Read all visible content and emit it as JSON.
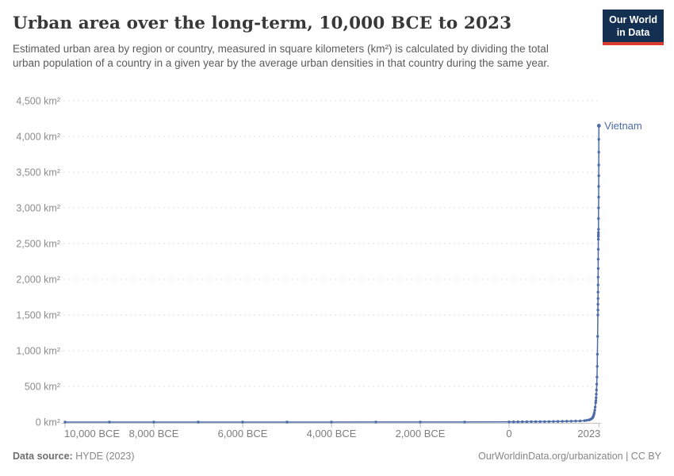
{
  "header": {
    "title": "Urban area over the long-term, 10,000 BCE to 2023",
    "subtitle": "Estimated urban area by region or country, measured in square kilometers (km²) is calculated by dividing the total urban population of a country in a given year by the average urban densities in that country during the same year.",
    "logo": {
      "line1": "Our World",
      "line2": "in Data",
      "bg_color": "#132F51",
      "accent_color": "#DC3A2F"
    }
  },
  "footer": {
    "source_label": "Data source:",
    "source_value": " HYDE (2023)",
    "credit": "OurWorldinData.org/urbanization | CC BY"
  },
  "chart_data": {
    "type": "line",
    "title": "Urban area over the long-term, 10,000 BCE to 2023",
    "xlabel": "",
    "ylabel": "km²",
    "ylim": [
      0,
      4500
    ],
    "xlim": [
      -10000,
      2060
    ],
    "grid": "dashed-horizontal",
    "legend_position": "end-of-line-label",
    "line_color": "#4C6BA8",
    "grid_color": "#e0e0e0",
    "axis_color": "#c2c2c2",
    "tick_label_color": "#8c8c8c",
    "yticks": [
      {
        "value": 0,
        "label": "0 km²"
      },
      {
        "value": 500,
        "label": "500 km²"
      },
      {
        "value": 1000,
        "label": "1,000 km²"
      },
      {
        "value": 1500,
        "label": "1,500 km²"
      },
      {
        "value": 2000,
        "label": "2,000 km²"
      },
      {
        "value": 2500,
        "label": "2,500 km²"
      },
      {
        "value": 3000,
        "label": "3,000 km²"
      },
      {
        "value": 3500,
        "label": "3,500 km²"
      },
      {
        "value": 4000,
        "label": "4,000 km²"
      },
      {
        "value": 4500,
        "label": "4,500 km²"
      }
    ],
    "xticks": [
      {
        "value": -10000,
        "label": "10,000 BCE"
      },
      {
        "value": -8000,
        "label": "8,000 BCE"
      },
      {
        "value": -6000,
        "label": "6,000 BCE"
      },
      {
        "value": -4000,
        "label": "4,000 BCE"
      },
      {
        "value": -2000,
        "label": "2,000 BCE"
      },
      {
        "value": 0,
        "label": "0"
      },
      {
        "value": 2023,
        "label": "2023"
      }
    ],
    "series": [
      {
        "name": "Vietnam",
        "color": "#4C6BA8",
        "points": [
          [
            -10000,
            0
          ],
          [
            -9000,
            0
          ],
          [
            -8000,
            0
          ],
          [
            -7000,
            0
          ],
          [
            -6000,
            0
          ],
          [
            -5000,
            0
          ],
          [
            -4000,
            0
          ],
          [
            -3000,
            1
          ],
          [
            -2000,
            1
          ],
          [
            -1000,
            1
          ],
          [
            0,
            2
          ],
          [
            100,
            3
          ],
          [
            200,
            3
          ],
          [
            300,
            4
          ],
          [
            400,
            4
          ],
          [
            500,
            5
          ],
          [
            600,
            5
          ],
          [
            700,
            6
          ],
          [
            800,
            7
          ],
          [
            900,
            7
          ],
          [
            1000,
            8
          ],
          [
            1100,
            9
          ],
          [
            1200,
            10
          ],
          [
            1300,
            11
          ],
          [
            1400,
            12
          ],
          [
            1500,
            14
          ],
          [
            1600,
            16
          ],
          [
            1700,
            20
          ],
          [
            1750,
            24
          ],
          [
            1800,
            30
          ],
          [
            1820,
            34
          ],
          [
            1840,
            40
          ],
          [
            1860,
            48
          ],
          [
            1880,
            60
          ],
          [
            1890,
            70
          ],
          [
            1900,
            85
          ],
          [
            1910,
            105
          ],
          [
            1920,
            130
          ],
          [
            1930,
            165
          ],
          [
            1940,
            210
          ],
          [
            1950,
            270
          ],
          [
            1955,
            300
          ],
          [
            1960,
            340
          ],
          [
            1965,
            390
          ],
          [
            1970,
            450
          ],
          [
            1975,
            530
          ],
          [
            1980,
            630
          ],
          [
            1985,
            780
          ],
          [
            1990,
            950
          ],
          [
            1995,
            1200
          ],
          [
            2000,
            1500
          ],
          [
            2001,
            1570
          ],
          [
            2002,
            1650
          ],
          [
            2003,
            1730
          ],
          [
            2004,
            1820
          ],
          [
            2005,
            1920
          ],
          [
            2006,
            2030
          ],
          [
            2007,
            2150
          ],
          [
            2008,
            2280
          ],
          [
            2009,
            2420
          ],
          [
            2010,
            2560
          ],
          [
            2011,
            2600
          ],
          [
            2012,
            2625
          ],
          [
            2013,
            2655
          ],
          [
            2014,
            2700
          ],
          [
            2015,
            2850
          ],
          [
            2016,
            3000
          ],
          [
            2017,
            3150
          ],
          [
            2018,
            3300
          ],
          [
            2019,
            3450
          ],
          [
            2020,
            3600
          ],
          [
            2021,
            3780
          ],
          [
            2022,
            3960
          ],
          [
            2023,
            4150
          ]
        ]
      }
    ]
  }
}
